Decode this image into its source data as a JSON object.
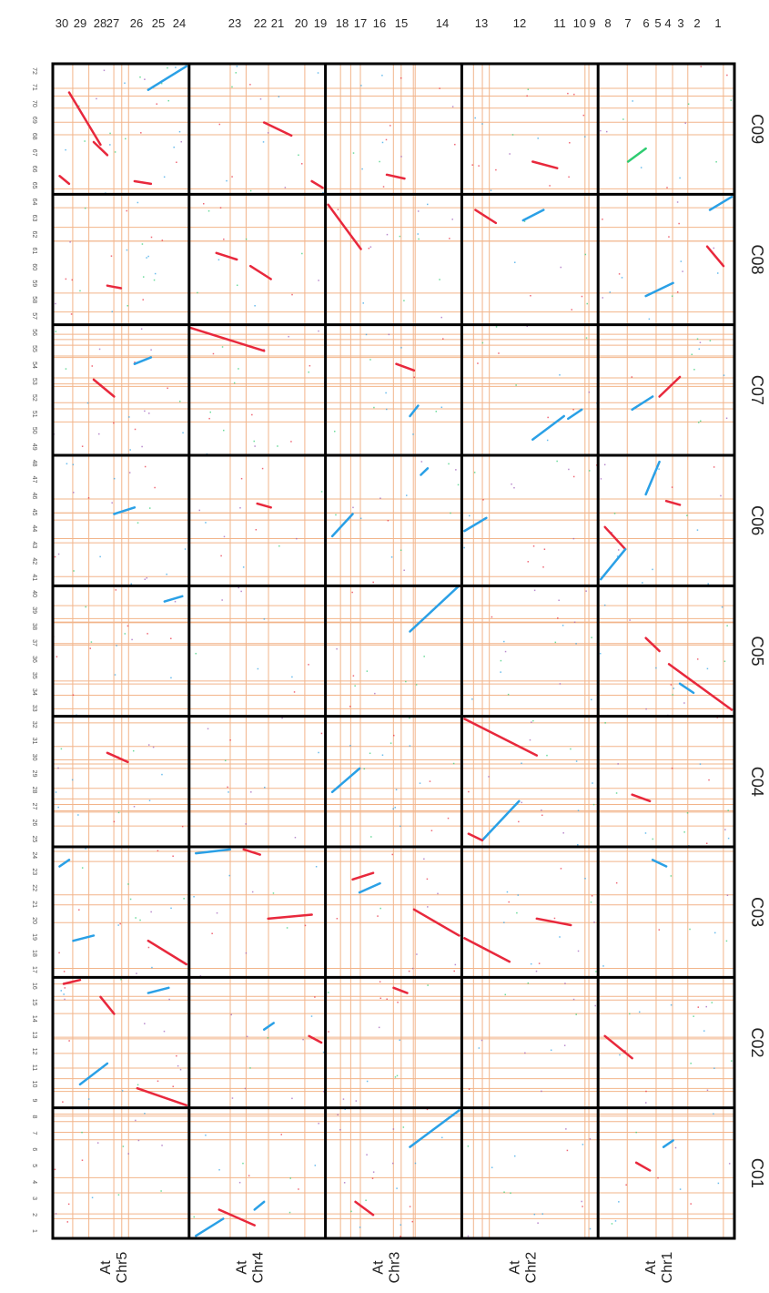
{
  "chart_data": {
    "type": "scatter",
    "top_labels": [
      "30",
      "29",
      "28",
      "27",
      "26",
      "25",
      "24",
      "23",
      "22",
      "21",
      "20",
      "19",
      "18",
      "17",
      "16",
      "15",
      "14",
      "13",
      "12",
      "11",
      "10",
      "9",
      "8",
      "7",
      "6",
      "5",
      "4",
      "3",
      "2",
      "1"
    ],
    "top_label_colors": [
      "#c0392b",
      "#2a2a2a",
      "#c0392b",
      "#2a2a2a",
      "#2a2a2a",
      "#c0392b",
      "#2a2a2a",
      "#2a2a2a",
      "#2a2a2a",
      "#c0392b",
      "#2a2a2a",
      "#2a2a2a",
      "#2a2a2a",
      "#c0392b",
      "#2a2a2a",
      "#c0392b",
      "#2a2a2a",
      "#2a2a2a",
      "#c0392b",
      "#2a2a2a",
      "#2a2a2a",
      "#2a2a2a",
      "#c0392b",
      "#2a2a2a",
      "#2a2a2a",
      "#c0392b",
      "#2a2a2a",
      "#2a2a2a",
      "#c0392b",
      "#2a2a2a"
    ],
    "column_labels": [
      {
        "line1": "At",
        "line2": "Chr5"
      },
      {
        "line1": "At",
        "line2": "Chr4"
      },
      {
        "line1": "At",
        "line2": "Chr3"
      },
      {
        "line1": "At",
        "line2": "Chr2"
      },
      {
        "line1": "At",
        "line2": "Chr1"
      }
    ],
    "row_labels": [
      "C09",
      "C08",
      "C07",
      "C06",
      "C05",
      "C04",
      "C03",
      "C02",
      "C01"
    ],
    "tick_labels": [
      "1",
      "2",
      "3",
      "4",
      "5",
      "6",
      "7",
      "8",
      "9",
      "10",
      "11",
      "12",
      "13",
      "14",
      "15",
      "16",
      "17",
      "18",
      "19",
      "20",
      "21",
      "22",
      "23",
      "24",
      "25",
      "26",
      "27",
      "28",
      "29",
      "30",
      "31",
      "32",
      "33",
      "34",
      "35",
      "36",
      "37",
      "38",
      "39",
      "40",
      "41",
      "42",
      "43",
      "44",
      "45",
      "46",
      "47",
      "48",
      "49",
      "50",
      "51",
      "52",
      "53",
      "54",
      "55",
      "56",
      "57",
      "58",
      "59",
      "60",
      "61",
      "62",
      "63",
      "64",
      "65",
      "66",
      "67",
      "68",
      "69",
      "70",
      "71",
      "72"
    ],
    "colors": {
      "red": "#e8283c",
      "blue": "#2aa0e6",
      "grid": "#f2b48a",
      "frame": "#000000",
      "green": "#2ecc71",
      "purple": "#9b59b6"
    },
    "grid": true,
    "segments": [
      {
        "col": 0,
        "row": 0,
        "x1": 0.12,
        "y1": 0.22,
        "x2": 0.35,
        "y2": 0.62,
        "color": "red"
      },
      {
        "col": 0,
        "row": 0,
        "x1": 0.3,
        "y1": 0.6,
        "x2": 0.4,
        "y2": 0.7,
        "color": "red"
      },
      {
        "col": 0,
        "row": 0,
        "x1": 0.05,
        "y1": 0.86,
        "x2": 0.12,
        "y2": 0.92,
        "color": "red"
      },
      {
        "col": 0,
        "row": 0,
        "x1": 0.7,
        "y1": 0.2,
        "x2": 0.98,
        "y2": 0.02,
        "color": "blue"
      },
      {
        "col": 0,
        "row": 0,
        "x1": 0.6,
        "y1": 0.9,
        "x2": 0.72,
        "y2": 0.92,
        "color": "red"
      },
      {
        "col": 1,
        "row": 0,
        "x1": 0.55,
        "y1": 0.45,
        "x2": 0.75,
        "y2": 0.55,
        "color": "red"
      },
      {
        "col": 1,
        "row": 0,
        "x1": 0.9,
        "y1": 0.9,
        "x2": 0.98,
        "y2": 0.95,
        "color": "red"
      },
      {
        "col": 2,
        "row": 0,
        "x1": 0.45,
        "y1": 0.85,
        "x2": 0.58,
        "y2": 0.88,
        "color": "red"
      },
      {
        "col": 3,
        "row": 0,
        "x1": 0.52,
        "y1": 0.75,
        "x2": 0.7,
        "y2": 0.8,
        "color": "red"
      },
      {
        "col": 4,
        "row": 0,
        "x1": 0.22,
        "y1": 0.75,
        "x2": 0.35,
        "y2": 0.65,
        "color": "green"
      },
      {
        "col": 0,
        "row": 1,
        "x1": 0.4,
        "y1": 0.7,
        "x2": 0.5,
        "y2": 0.72,
        "color": "red"
      },
      {
        "col": 1,
        "row": 1,
        "x1": 0.2,
        "y1": 0.45,
        "x2": 0.35,
        "y2": 0.5,
        "color": "red"
      },
      {
        "col": 1,
        "row": 1,
        "x1": 0.45,
        "y1": 0.55,
        "x2": 0.6,
        "y2": 0.65,
        "color": "red"
      },
      {
        "col": 2,
        "row": 1,
        "x1": 0.02,
        "y1": 0.08,
        "x2": 0.26,
        "y2": 0.42,
        "color": "red"
      },
      {
        "col": 3,
        "row": 1,
        "x1": 0.1,
        "y1": 0.12,
        "x2": 0.25,
        "y2": 0.22,
        "color": "red"
      },
      {
        "col": 3,
        "row": 1,
        "x1": 0.45,
        "y1": 0.2,
        "x2": 0.6,
        "y2": 0.12,
        "color": "blue"
      },
      {
        "col": 4,
        "row": 1,
        "x1": 0.8,
        "y1": 0.4,
        "x2": 0.92,
        "y2": 0.55,
        "color": "red"
      },
      {
        "col": 4,
        "row": 1,
        "x1": 0.35,
        "y1": 0.78,
        "x2": 0.55,
        "y2": 0.68,
        "color": "blue"
      },
      {
        "col": 4,
        "row": 1,
        "x1": 0.82,
        "y1": 0.12,
        "x2": 0.98,
        "y2": 0.02,
        "color": "blue"
      },
      {
        "col": 1,
        "row": 2,
        "x1": 0.0,
        "y1": 0.02,
        "x2": 0.55,
        "y2": 0.2,
        "color": "red"
      },
      {
        "col": 0,
        "row": 2,
        "x1": 0.3,
        "y1": 0.42,
        "x2": 0.45,
        "y2": 0.55,
        "color": "red"
      },
      {
        "col": 0,
        "row": 2,
        "x1": 0.6,
        "y1": 0.3,
        "x2": 0.72,
        "y2": 0.25,
        "color": "blue"
      },
      {
        "col": 2,
        "row": 2,
        "x1": 0.52,
        "y1": 0.3,
        "x2": 0.65,
        "y2": 0.35,
        "color": "red"
      },
      {
        "col": 2,
        "row": 2,
        "x1": 0.62,
        "y1": 0.7,
        "x2": 0.68,
        "y2": 0.62,
        "color": "blue"
      },
      {
        "col": 3,
        "row": 2,
        "x1": 0.52,
        "y1": 0.88,
        "x2": 0.75,
        "y2": 0.7,
        "color": "blue"
      },
      {
        "col": 3,
        "row": 2,
        "x1": 0.78,
        "y1": 0.72,
        "x2": 0.88,
        "y2": 0.65,
        "color": "blue"
      },
      {
        "col": 4,
        "row": 2,
        "x1": 0.45,
        "y1": 0.55,
        "x2": 0.6,
        "y2": 0.4,
        "color": "red"
      },
      {
        "col": 4,
        "row": 2,
        "x1": 0.25,
        "y1": 0.65,
        "x2": 0.4,
        "y2": 0.55,
        "color": "blue"
      },
      {
        "col": 0,
        "row": 3,
        "x1": 0.45,
        "y1": 0.45,
        "x2": 0.6,
        "y2": 0.4,
        "color": "blue"
      },
      {
        "col": 1,
        "row": 3,
        "x1": 0.5,
        "y1": 0.37,
        "x2": 0.6,
        "y2": 0.4,
        "color": "red"
      },
      {
        "col": 2,
        "row": 3,
        "x1": 0.05,
        "y1": 0.62,
        "x2": 0.2,
        "y2": 0.45,
        "color": "blue"
      },
      {
        "col": 2,
        "row": 3,
        "x1": 0.7,
        "y1": 0.15,
        "x2": 0.75,
        "y2": 0.1,
        "color": "blue"
      },
      {
        "col": 3,
        "row": 3,
        "x1": 0.02,
        "y1": 0.58,
        "x2": 0.18,
        "y2": 0.48,
        "color": "blue"
      },
      {
        "col": 4,
        "row": 3,
        "x1": 0.05,
        "y1": 0.55,
        "x2": 0.2,
        "y2": 0.72,
        "color": "red"
      },
      {
        "col": 4,
        "row": 3,
        "x1": 0.02,
        "y1": 0.95,
        "x2": 0.2,
        "y2": 0.72,
        "color": "blue"
      },
      {
        "col": 4,
        "row": 3,
        "x1": 0.35,
        "y1": 0.3,
        "x2": 0.45,
        "y2": 0.05,
        "color": "blue"
      },
      {
        "col": 4,
        "row": 3,
        "x1": 0.5,
        "y1": 0.35,
        "x2": 0.6,
        "y2": 0.38,
        "color": "red"
      },
      {
        "col": 0,
        "row": 4,
        "x1": 0.82,
        "y1": 0.12,
        "x2": 0.95,
        "y2": 0.08,
        "color": "blue"
      },
      {
        "col": 2,
        "row": 4,
        "x1": 0.62,
        "y1": 0.35,
        "x2": 0.98,
        "y2": 0.0,
        "color": "blue"
      },
      {
        "col": 4,
        "row": 4,
        "x1": 0.52,
        "y1": 0.6,
        "x2": 0.98,
        "y2": 0.95,
        "color": "red"
      },
      {
        "col": 4,
        "row": 4,
        "x1": 0.35,
        "y1": 0.4,
        "x2": 0.45,
        "y2": 0.5,
        "color": "red"
      },
      {
        "col": 4,
        "row": 4,
        "x1": 0.6,
        "y1": 0.75,
        "x2": 0.7,
        "y2": 0.82,
        "color": "blue"
      },
      {
        "col": 0,
        "row": 5,
        "x1": 0.4,
        "y1": 0.28,
        "x2": 0.55,
        "y2": 0.35,
        "color": "red"
      },
      {
        "col": 2,
        "row": 5,
        "x1": 0.05,
        "y1": 0.58,
        "x2": 0.25,
        "y2": 0.4,
        "color": "blue"
      },
      {
        "col": 3,
        "row": 5,
        "x1": 0.02,
        "y1": 0.02,
        "x2": 0.55,
        "y2": 0.3,
        "color": "red"
      },
      {
        "col": 3,
        "row": 5,
        "x1": 0.15,
        "y1": 0.95,
        "x2": 0.42,
        "y2": 0.65,
        "color": "blue"
      },
      {
        "col": 3,
        "row": 5,
        "x1": 0.05,
        "y1": 0.9,
        "x2": 0.15,
        "y2": 0.95,
        "color": "red"
      },
      {
        "col": 4,
        "row": 5,
        "x1": 0.25,
        "y1": 0.6,
        "x2": 0.38,
        "y2": 0.65,
        "color": "red"
      },
      {
        "col": 0,
        "row": 6,
        "x1": 0.05,
        "y1": 0.15,
        "x2": 0.12,
        "y2": 0.1,
        "color": "blue"
      },
      {
        "col": 0,
        "row": 6,
        "x1": 0.15,
        "y1": 0.72,
        "x2": 0.3,
        "y2": 0.68,
        "color": "blue"
      },
      {
        "col": 0,
        "row": 6,
        "x1": 0.7,
        "y1": 0.72,
        "x2": 0.98,
        "y2": 0.9,
        "color": "red"
      },
      {
        "col": 1,
        "row": 6,
        "x1": 0.05,
        "y1": 0.05,
        "x2": 0.3,
        "y2": 0.02,
        "color": "blue"
      },
      {
        "col": 1,
        "row": 6,
        "x1": 0.4,
        "y1": 0.02,
        "x2": 0.52,
        "y2": 0.06,
        "color": "red"
      },
      {
        "col": 1,
        "row": 6,
        "x1": 0.58,
        "y1": 0.55,
        "x2": 0.9,
        "y2": 0.52,
        "color": "red"
      },
      {
        "col": 2,
        "row": 6,
        "x1": 0.2,
        "y1": 0.25,
        "x2": 0.35,
        "y2": 0.2,
        "color": "red"
      },
      {
        "col": 2,
        "row": 6,
        "x1": 0.25,
        "y1": 0.35,
        "x2": 0.4,
        "y2": 0.28,
        "color": "blue"
      },
      {
        "col": 2,
        "row": 6,
        "x1": 0.65,
        "y1": 0.48,
        "x2": 0.98,
        "y2": 0.68,
        "color": "red"
      },
      {
        "col": 3,
        "row": 6,
        "x1": 0.02,
        "y1": 0.7,
        "x2": 0.35,
        "y2": 0.88,
        "color": "red"
      },
      {
        "col": 3,
        "row": 6,
        "x1": 0.55,
        "y1": 0.55,
        "x2": 0.8,
        "y2": 0.6,
        "color": "red"
      },
      {
        "col": 4,
        "row": 6,
        "x1": 0.4,
        "y1": 0.1,
        "x2": 0.5,
        "y2": 0.15,
        "color": "blue"
      },
      {
        "col": 0,
        "row": 7,
        "x1": 0.08,
        "y1": 0.05,
        "x2": 0.2,
        "y2": 0.02,
        "color": "red"
      },
      {
        "col": 0,
        "row": 7,
        "x1": 0.35,
        "y1": 0.15,
        "x2": 0.45,
        "y2": 0.28,
        "color": "red"
      },
      {
        "col": 0,
        "row": 7,
        "x1": 0.2,
        "y1": 0.82,
        "x2": 0.4,
        "y2": 0.66,
        "color": "blue"
      },
      {
        "col": 0,
        "row": 7,
        "x1": 0.62,
        "y1": 0.85,
        "x2": 0.98,
        "y2": 0.98,
        "color": "red"
      },
      {
        "col": 0,
        "row": 7,
        "x1": 0.7,
        "y1": 0.12,
        "x2": 0.85,
        "y2": 0.08,
        "color": "blue"
      },
      {
        "col": 1,
        "row": 7,
        "x1": 0.55,
        "y1": 0.4,
        "x2": 0.62,
        "y2": 0.35,
        "color": "blue"
      },
      {
        "col": 1,
        "row": 7,
        "x1": 0.88,
        "y1": 0.45,
        "x2": 0.97,
        "y2": 0.5,
        "color": "red"
      },
      {
        "col": 2,
        "row": 7,
        "x1": 0.5,
        "y1": 0.08,
        "x2": 0.6,
        "y2": 0.12,
        "color": "red"
      },
      {
        "col": 4,
        "row": 7,
        "x1": 0.05,
        "y1": 0.45,
        "x2": 0.25,
        "y2": 0.62,
        "color": "red"
      },
      {
        "col": 1,
        "row": 8,
        "x1": 0.05,
        "y1": 0.98,
        "x2": 0.25,
        "y2": 0.85,
        "color": "blue"
      },
      {
        "col": 1,
        "row": 8,
        "x1": 0.22,
        "y1": 0.78,
        "x2": 0.48,
        "y2": 0.9,
        "color": "red"
      },
      {
        "col": 1,
        "row": 8,
        "x1": 0.48,
        "y1": 0.78,
        "x2": 0.55,
        "y2": 0.72,
        "color": "blue"
      },
      {
        "col": 2,
        "row": 8,
        "x1": 0.62,
        "y1": 0.3,
        "x2": 0.98,
        "y2": 0.02,
        "color": "blue"
      },
      {
        "col": 2,
        "row": 8,
        "x1": 0.22,
        "y1": 0.72,
        "x2": 0.35,
        "y2": 0.82,
        "color": "red"
      },
      {
        "col": 4,
        "row": 8,
        "x1": 0.28,
        "y1": 0.42,
        "x2": 0.38,
        "y2": 0.48,
        "color": "red"
      },
      {
        "col": 4,
        "row": 8,
        "x1": 0.48,
        "y1": 0.3,
        "x2": 0.55,
        "y2": 0.25,
        "color": "blue"
      }
    ]
  }
}
